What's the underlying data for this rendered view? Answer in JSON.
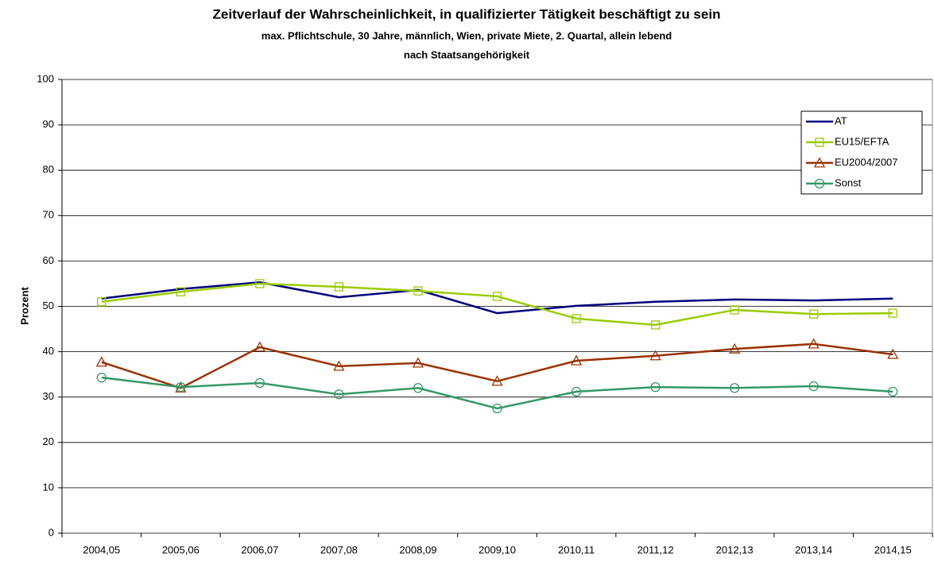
{
  "chart_data": {
    "type": "line",
    "title": "Zeitverlauf der Wahrscheinlichkeit, in qualifizierter Tätigkeit beschäftigt zu sein",
    "subtitle": [
      "max. Pflichtschule, 30 Jahre, männlich, Wien, private Miete, 2. Quartal, allein lebend",
      "nach Staatsangehörigkeit"
    ],
    "y_label": "Prozent",
    "categories": [
      "2004,05",
      "2005,06",
      "2006,07",
      "2007,08",
      "2008,09",
      "2009,10",
      "2010,11",
      "2011,12",
      "2012,13",
      "2013,14",
      "2014,15"
    ],
    "series": [
      {
        "name": "AT",
        "color": "#000080",
        "marker": "none",
        "values": [
          51.7,
          53.8,
          55.3,
          52.0,
          53.6,
          48.5,
          50.1,
          51.0,
          51.5,
          51.3,
          51.7
        ]
      },
      {
        "name": "EU15/EFTA",
        "color": "#99cc00",
        "marker": "square",
        "values": [
          51.0,
          53.2,
          55.0,
          54.3,
          53.4,
          52.2,
          47.3,
          45.9,
          49.2,
          48.3,
          48.5
        ]
      },
      {
        "name": "EU2004/2007",
        "color": "#993300",
        "marker": "triangle",
        "values": [
          37.7,
          32.0,
          41.0,
          36.8,
          37.5,
          33.5,
          38.0,
          39.1,
          40.6,
          41.7,
          39.4
        ]
      },
      {
        "name": "Sonst",
        "color": "#339966",
        "marker": "circle",
        "values": [
          34.3,
          32.2,
          33.1,
          30.6,
          32.0,
          27.5,
          31.2,
          32.2,
          32.0,
          32.4,
          31.2
        ]
      }
    ],
    "ylim": [
      0,
      100
    ],
    "yticks": [
      0,
      10,
      20,
      30,
      40,
      50,
      60,
      70,
      80,
      90,
      100
    ],
    "grid": true,
    "legend": "upper right"
  }
}
